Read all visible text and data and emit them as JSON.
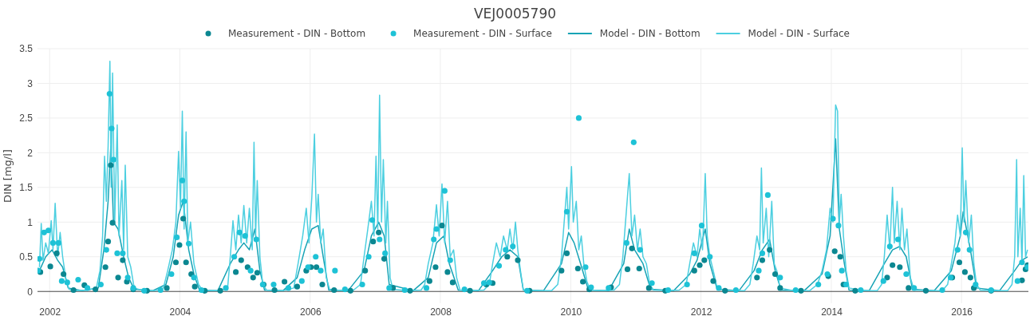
{
  "chart_data": {
    "type": "line",
    "title": "VEJ0005790",
    "ylabel": "DIN [mg/l]",
    "legend": "top",
    "grid": true,
    "xlim": [
      "2001-10-25",
      "2017-01-10"
    ],
    "xticks": [
      "2002",
      "2004",
      "2006",
      "2008",
      "2010",
      "2012",
      "2014",
      "2016"
    ],
    "ylim": [
      -0.17,
      3.5
    ],
    "yticks": [
      0,
      0.5,
      1,
      1.5,
      2,
      2.5,
      3,
      3.5
    ],
    "series": [
      {
        "name": "Measurement - DIN - Bottom",
        "type": "scatter",
        "marker": "circle",
        "color": "#0b8791",
        "x": [
          "2001-11-10",
          "2002-01-05",
          "2002-02-10",
          "2002-03-20",
          "2002-05-15",
          "2002-07-15",
          "2002-09-15",
          "2002-11-10",
          "2002-11-25",
          "2002-12-10",
          "2002-12-20",
          "2003-01-20",
          "2003-02-15",
          "2003-03-10",
          "2003-04-15",
          "2003-07-01",
          "2003-10-20",
          "2003-12-10",
          "2003-12-30",
          "2004-01-20",
          "2004-02-05",
          "2004-03-05",
          "2004-03-25",
          "2004-05-20",
          "2004-08-15",
          "2004-11-10",
          "2004-12-10",
          "2005-01-15",
          "2005-02-15",
          "2005-03-10",
          "2005-04-15",
          "2005-06-15",
          "2005-08-10",
          "2005-10-20",
          "2005-12-10",
          "2006-01-05",
          "2006-02-05",
          "2006-03-10",
          "2006-05-15",
          "2006-08-15",
          "2006-11-05",
          "2006-12-20",
          "2007-01-20",
          "2007-02-20",
          "2007-04-10",
          "2007-07-15",
          "2007-11-01",
          "2007-12-05",
          "2008-01-10",
          "2008-02-10",
          "2008-03-10",
          "2008-06-15",
          "2008-09-15",
          "2008-10-20",
          "2009-01-10",
          "2009-03-10",
          "2009-05-15",
          "2009-11-10",
          "2009-12-10",
          "2010-02-10",
          "2010-03-10",
          "2010-04-15",
          "2010-08-15",
          "2010-11-15",
          "2010-12-10",
          "2011-01-20",
          "2011-03-15",
          "2011-06-15",
          "2011-11-25",
          "2011-12-25",
          "2012-01-20",
          "2012-03-10",
          "2012-05-15",
          "2012-11-10",
          "2012-12-10",
          "2013-01-20",
          "2013-02-20",
          "2013-03-20",
          "2013-07-15",
          "2013-12-15",
          "2014-01-20",
          "2014-02-20",
          "2014-03-10",
          "2014-05-15",
          "2014-11-10",
          "2014-12-10",
          "2015-01-20",
          "2015-03-10",
          "2015-06-15",
          "2015-11-10",
          "2015-12-20",
          "2016-01-20",
          "2016-02-20",
          "2016-03-10",
          "2016-06-15",
          "2016-12-05",
          "2016-12-25",
          "2017-01-05"
        ],
        "values": [
          0.28,
          0.36,
          0.55,
          0.25,
          0.02,
          0.09,
          0.03,
          0.35,
          0.72,
          1.82,
          0.99,
          0.2,
          0.45,
          0.14,
          0.03,
          0.01,
          0.05,
          0.42,
          0.67,
          1.05,
          0.42,
          0.25,
          0.07,
          0.01,
          0.01,
          0.28,
          0.45,
          0.35,
          0.2,
          0.27,
          0.1,
          0.02,
          0.14,
          0.07,
          0.3,
          0.35,
          0.35,
          0.1,
          0.02,
          0.01,
          0.3,
          0.72,
          0.85,
          0.47,
          0.05,
          0.01,
          0.15,
          0.35,
          0.95,
          0.28,
          0.13,
          0.01,
          0.1,
          0.12,
          0.5,
          0.45,
          0.01,
          0.3,
          0.55,
          0.33,
          0.14,
          0.03,
          0.06,
          0.32,
          0.62,
          0.33,
          0.05,
          0.01,
          0.3,
          0.38,
          0.45,
          0.15,
          0.01,
          0.2,
          0.45,
          0.6,
          0.25,
          0.05,
          0.01,
          0.22,
          0.58,
          0.5,
          0.1,
          0.01,
          0.2,
          0.38,
          0.35,
          0.05,
          0.01,
          0.2,
          0.42,
          0.28,
          0.2,
          0.05,
          0.01,
          0.16,
          0.32,
          0.38
        ]
      },
      {
        "name": "Measurement - DIN - Surface",
        "type": "scatter",
        "marker": "circle",
        "color": "#1ec2d6",
        "x": [
          "2001-10-28",
          "2001-11-05",
          "2001-12-01",
          "2001-12-25",
          "2002-01-20",
          "2002-02-20",
          "2002-03-10",
          "2002-04-10",
          "2002-06-10",
          "2002-08-01",
          "2002-10-15",
          "2002-11-15",
          "2002-12-03",
          "2002-12-15",
          "2002-12-25",
          "2003-01-15",
          "2003-02-15",
          "2003-03-15",
          "2003-04-15",
          "2003-06-15",
          "2003-09-15",
          "2003-11-15",
          "2003-12-15",
          "2004-01-15",
          "2004-01-25",
          "2004-02-20",
          "2004-03-20",
          "2004-05-01",
          "2004-09-15",
          "2004-11-01",
          "2004-12-01",
          "2005-01-01",
          "2005-02-01",
          "2005-03-05",
          "2005-04-10",
          "2005-06-10",
          "2005-09-01",
          "2005-11-15",
          "2005-12-20",
          "2006-02-01",
          "2006-03-01",
          "2006-05-20",
          "2006-07-15",
          "2006-10-20",
          "2006-11-25",
          "2006-12-15",
          "2007-01-25",
          "2007-02-25",
          "2007-03-20",
          "2007-06-15",
          "2007-10-15",
          "2007-11-25",
          "2007-12-10",
          "2008-01-25",
          "2008-02-25",
          "2008-05-15",
          "2008-09-01",
          "2008-10-01",
          "2008-11-25",
          "2009-01-01",
          "2009-02-10",
          "2009-05-01",
          "2009-12-10",
          "2010-02-15",
          "2010-03-25",
          "2010-04-25",
          "2010-08-01",
          "2010-11-10",
          "2010-12-20",
          "2011-01-25",
          "2011-04-01",
          "2011-07-01",
          "2011-10-15",
          "2011-11-25",
          "2012-01-05",
          "2012-02-20",
          "2012-04-10",
          "2012-07-15",
          "2012-11-20",
          "2012-12-10",
          "2013-01-10",
          "2013-03-20",
          "2013-06-15",
          "2013-10-20",
          "2013-12-10",
          "2014-01-10",
          "2014-02-10",
          "2014-03-01",
          "2014-03-25",
          "2014-06-15",
          "2014-10-20",
          "2014-11-25",
          "2015-01-10",
          "2015-02-25",
          "2015-04-10",
          "2015-09-15",
          "2015-11-01",
          "2015-12-10",
          "2016-01-25",
          "2016-02-15",
          "2016-03-20",
          "2016-06-15",
          "2016-11-10",
          "2016-12-05",
          "2017-01-05"
        ],
        "values": [
          0.3,
          0.47,
          0.85,
          0.88,
          0.7,
          0.7,
          0.15,
          0.13,
          0.17,
          0.05,
          0.1,
          0.6,
          2.85,
          2.35,
          1.9,
          0.55,
          0.55,
          0.2,
          0.05,
          0.01,
          0.02,
          0.25,
          0.78,
          1.6,
          1.3,
          0.69,
          0.2,
          0.02,
          0.05,
          0.5,
          0.85,
          0.8,
          0.3,
          0.75,
          0.1,
          0.1,
          0.05,
          0.15,
          0.35,
          0.5,
          0.3,
          0.3,
          0.03,
          0.1,
          0.5,
          1.03,
          0.75,
          0.55,
          0.05,
          0.02,
          0.05,
          0.75,
          0.9,
          1.45,
          0.45,
          0.03,
          0.12,
          0.13,
          0.37,
          0.6,
          0.65,
          0.01,
          1.15,
          2.5,
          0.35,
          0.06,
          0.05,
          0.7,
          2.15,
          0.6,
          0.12,
          0.02,
          0.1,
          0.55,
          0.95,
          0.5,
          0.05,
          0.02,
          0.3,
          0.55,
          1.39,
          0.2,
          0.02,
          0.1,
          0.25,
          1.05,
          0.95,
          0.3,
          0.1,
          0.02,
          0.15,
          0.65,
          0.75,
          0.25,
          0.05,
          0.02,
          0.2,
          0.6,
          0.85,
          0.6,
          0.1,
          0.02,
          0.15,
          0.42,
          0.35
        ]
      },
      {
        "name": "Model - DIN - Bottom",
        "color": "#17a3b5",
        "x": [
          "2001-11-05",
          "2001-12-10",
          "2002-01-15",
          "2002-02-15",
          "2002-03-15",
          "2002-04-15",
          "2002-07-01",
          "2002-10-01",
          "2002-11-01",
          "2002-11-25",
          "2002-12-10",
          "2002-12-25",
          "2003-01-20",
          "2003-02-20",
          "2003-03-20",
          "2003-04-20",
          "2003-08-01",
          "2003-10-15",
          "2003-11-25",
          "2003-12-25",
          "2004-01-20",
          "2004-02-20",
          "2004-03-20",
          "2004-04-20",
          "2004-08-01",
          "2004-10-10",
          "2004-11-25",
          "2004-12-25",
          "2005-01-25",
          "2005-02-25",
          "2005-03-25",
          "2005-04-20",
          "2005-08-01",
          "2005-10-20",
          "2005-12-01",
          "2006-01-10",
          "2006-02-15",
          "2006-03-15",
          "2006-04-15",
          "2006-08-01",
          "2006-10-30",
          "2006-12-10",
          "2007-01-20",
          "2007-02-20",
          "2007-03-20",
          "2007-08-01",
          "2007-10-25",
          "2007-12-10",
          "2008-01-20",
          "2008-02-20",
          "2008-04-10",
          "2008-08-01",
          "2008-10-20",
          "2008-12-10",
          "2009-01-25",
          "2009-03-10",
          "2009-04-10",
          "2009-08-01",
          "2009-11-10",
          "2009-12-20",
          "2010-01-20",
          "2010-02-25",
          "2010-04-10",
          "2010-08-01",
          "2010-10-25",
          "2010-11-25",
          "2010-12-25",
          "2011-02-10",
          "2011-03-25",
          "2011-08-01",
          "2011-10-30",
          "2011-12-10",
          "2012-01-25",
          "2012-02-20",
          "2012-04-01",
          "2012-08-01",
          "2012-10-25",
          "2012-12-10",
          "2013-01-20",
          "2013-02-20",
          "2013-03-25",
          "2013-08-01",
          "2013-11-10",
          "2013-12-25",
          "2014-01-25",
          "2014-02-15",
          "2014-03-15",
          "2014-04-10",
          "2014-08-01",
          "2014-10-25",
          "2014-12-10",
          "2015-01-20",
          "2015-02-25",
          "2015-04-01",
          "2015-08-01",
          "2015-11-05",
          "2015-12-25",
          "2016-01-10",
          "2016-02-20",
          "2016-03-25",
          "2016-08-01",
          "2016-10-25",
          "2016-12-05",
          "2017-01-05"
        ],
        "values": [
          0.3,
          0.5,
          0.6,
          0.45,
          0.35,
          0.05,
          0.01,
          0.05,
          0.6,
          1.3,
          2.1,
          1.0,
          0.9,
          0.5,
          0.2,
          0.03,
          0.01,
          0.1,
          0.5,
          1.1,
          1.3,
          0.6,
          0.25,
          0.02,
          0.01,
          0.4,
          0.6,
          0.7,
          0.6,
          0.9,
          0.3,
          0.02,
          0.01,
          0.2,
          0.6,
          0.9,
          0.95,
          0.5,
          0.02,
          0.01,
          0.3,
          0.8,
          1.0,
          0.8,
          0.1,
          0.01,
          0.2,
          0.7,
          0.8,
          0.4,
          0.02,
          0.01,
          0.3,
          0.5,
          0.6,
          0.5,
          0.02,
          0.01,
          0.4,
          0.85,
          0.7,
          0.4,
          0.02,
          0.01,
          0.4,
          0.9,
          0.6,
          0.4,
          0.03,
          0.01,
          0.25,
          0.45,
          0.9,
          0.4,
          0.03,
          0.01,
          0.3,
          0.6,
          0.75,
          0.3,
          0.02,
          0.01,
          0.25,
          0.8,
          2.2,
          0.9,
          0.4,
          0.02,
          0.01,
          0.4,
          0.6,
          0.65,
          0.5,
          0.03,
          0.01,
          0.3,
          0.8,
          1.15,
          0.6,
          0.05,
          0.01,
          0.3,
          0.45,
          0.5
        ]
      },
      {
        "name": "Model - DIN - Surface",
        "color": "#4ccfe0",
        "x": [
          "2001-11-05",
          "2001-11-15",
          "2001-11-25",
          "2001-12-10",
          "2001-12-25",
          "2002-01-10",
          "2002-01-20",
          "2002-02-01",
          "2002-02-15",
          "2002-03-01",
          "2002-03-15",
          "2002-04-01",
          "2002-04-20",
          "2002-06-01",
          "2002-08-01",
          "2002-09-20",
          "2002-10-10",
          "2002-10-25",
          "2002-11-05",
          "2002-11-15",
          "2002-11-25",
          "2002-12-05",
          "2002-12-12",
          "2002-12-20",
          "2003-01-01",
          "2003-01-15",
          "2003-01-25",
          "2003-02-10",
          "2003-02-20",
          "2003-03-01",
          "2003-03-15",
          "2003-04-01",
          "2003-04-20",
          "2003-06-15",
          "2003-08-15",
          "2003-10-01",
          "2003-10-25",
          "2003-11-20",
          "2003-12-10",
          "2003-12-25",
          "2004-01-05",
          "2004-01-15",
          "2004-01-25",
          "2004-02-05",
          "2004-02-15",
          "2004-03-01",
          "2004-03-20",
          "2004-04-15",
          "2004-05-10",
          "2004-08-01",
          "2004-09-25",
          "2004-10-10",
          "2004-10-25",
          "2004-11-10",
          "2004-11-25",
          "2004-12-10",
          "2004-12-25",
          "2005-01-10",
          "2005-01-25",
          "2005-02-10",
          "2005-02-20",
          "2005-03-01",
          "2005-03-10",
          "2005-03-25",
          "2005-04-10",
          "2005-05-01",
          "2005-08-01",
          "2005-10-01",
          "2005-10-25",
          "2005-11-20",
          "2005-12-10",
          "2005-12-25",
          "2006-01-10",
          "2006-01-25",
          "2006-02-05",
          "2006-02-15",
          "2006-03-01",
          "2006-03-15",
          "2006-04-01",
          "2006-04-20",
          "2006-07-01",
          "2006-09-01",
          "2006-10-10",
          "2006-10-30",
          "2006-11-20",
          "2006-12-10",
          "2006-12-25",
          "2007-01-05",
          "2007-01-15",
          "2007-01-25",
          "2007-02-05",
          "2007-02-15",
          "2007-03-01",
          "2007-03-10",
          "2007-03-25",
          "2007-04-10",
          "2007-07-01",
          "2007-09-15",
          "2007-10-05",
          "2007-10-25",
          "2007-11-20",
          "2007-12-10",
          "2007-12-25",
          "2008-01-10",
          "2008-01-25",
          "2008-02-10",
          "2008-02-25",
          "2008-03-15",
          "2008-04-01",
          "2008-04-20",
          "2008-07-01",
          "2008-09-01",
          "2008-10-01",
          "2008-10-20",
          "2008-11-10",
          "2008-12-01",
          "2008-12-20",
          "2009-01-10",
          "2009-01-25",
          "2009-02-10",
          "2009-02-25",
          "2009-03-10",
          "2009-03-25",
          "2009-04-10",
          "2009-07-01",
          "2009-09-15",
          "2009-10-20",
          "2009-11-10",
          "2009-11-25",
          "2009-12-10",
          "2009-12-20",
          "2010-01-05",
          "2010-01-15",
          "2010-02-01",
          "2010-02-15",
          "2010-03-01",
          "2010-03-15",
          "2010-04-01",
          "2010-04-20",
          "2010-07-01",
          "2010-09-01",
          "2010-10-01",
          "2010-10-20",
          "2010-11-10",
          "2010-11-25",
          "2010-12-10",
          "2010-12-25",
          "2011-01-10",
          "2011-01-25",
          "2011-02-10",
          "2011-03-01",
          "2011-03-20",
          "2011-04-10",
          "2011-07-01",
          "2011-09-01",
          "2011-10-10",
          "2011-10-30",
          "2011-11-20",
          "2011-12-10",
          "2011-12-25",
          "2012-01-10",
          "2012-01-25",
          "2012-02-05",
          "2012-02-20",
          "2012-03-10",
          "2012-04-01",
          "2012-06-01",
          "2012-09-01",
          "2012-10-01",
          "2012-10-20",
          "2012-11-10",
          "2012-11-25",
          "2012-12-05",
          "2012-12-15",
          "2013-01-01",
          "2013-01-15",
          "2013-02-01",
          "2013-02-15",
          "2013-03-01",
          "2013-03-20",
          "2013-06-01",
          "2013-09-01",
          "2013-10-15",
          "2013-11-10",
          "2013-12-05",
          "2013-12-25",
          "2014-01-10",
          "2014-01-25",
          "2014-02-05",
          "2014-02-15",
          "2014-02-25",
          "2014-03-10",
          "2014-03-25",
          "2014-04-10",
          "2014-07-01",
          "2014-09-15",
          "2014-10-10",
          "2014-10-25",
          "2014-11-10",
          "2014-11-25",
          "2014-12-10",
          "2014-12-20",
          "2015-01-05",
          "2015-01-20",
          "2015-02-01",
          "2015-02-15",
          "2015-03-01",
          "2015-03-20",
          "2015-04-10",
          "2015-07-01",
          "2015-09-15",
          "2015-10-15",
          "2015-11-05",
          "2015-11-25",
          "2015-12-10",
          "2015-12-25",
          "2016-01-05",
          "2016-01-15",
          "2016-01-25",
          "2016-02-10",
          "2016-02-25",
          "2016-03-10",
          "2016-03-25",
          "2016-04-15",
          "2016-07-01",
          "2016-09-15",
          "2016-10-10",
          "2016-10-25",
          "2016-11-05",
          "2016-11-12",
          "2016-11-25",
          "2016-12-05",
          "2016-12-15",
          "2016-12-25",
          "2017-01-05"
        ],
        "values": [
          0.35,
          0.98,
          0.45,
          0.7,
          0.55,
          1.02,
          0.6,
          1.27,
          0.5,
          0.85,
          0.5,
          0.2,
          0.03,
          0.01,
          0.02,
          0.05,
          0.3,
          0.8,
          1.95,
          1.3,
          2.1,
          3.32,
          1.5,
          3.15,
          1.0,
          2.4,
          0.8,
          1.6,
          0.6,
          1.82,
          0.5,
          0.35,
          0.05,
          0.01,
          0.01,
          0.05,
          0.3,
          0.6,
          1.0,
          2.02,
          1.2,
          2.6,
          0.9,
          2.3,
          0.7,
          1.0,
          0.4,
          0.1,
          0.01,
          0.01,
          0.05,
          0.5,
          1.02,
          0.6,
          1.1,
          0.7,
          1.24,
          0.7,
          1.2,
          0.6,
          2.15,
          0.8,
          1.6,
          0.5,
          0.1,
          0.02,
          0.01,
          0.05,
          0.4,
          0.8,
          1.2,
          0.7,
          1.35,
          2.27,
          1.0,
          1.4,
          0.7,
          0.9,
          0.2,
          0.03,
          0.01,
          0.02,
          0.1,
          0.5,
          0.9,
          1.3,
          0.8,
          1.95,
          0.9,
          2.83,
          1.0,
          1.9,
          0.7,
          1.3,
          0.2,
          0.03,
          0.01,
          0.02,
          0.1,
          0.4,
          0.7,
          1.25,
          0.8,
          1.55,
          0.7,
          1.3,
          0.5,
          0.6,
          0.2,
          0.02,
          0.01,
          0.02,
          0.1,
          0.4,
          0.7,
          0.5,
          0.8,
          0.6,
          0.9,
          0.6,
          1.0,
          0.6,
          0.3,
          0.02,
          0.01,
          0.01,
          0.1,
          0.5,
          1.0,
          1.5,
          0.9,
          1.8,
          1.0,
          1.3,
          0.6,
          0.8,
          0.4,
          0.15,
          0.02,
          0.01,
          0.02,
          0.1,
          0.5,
          1.2,
          1.7,
          0.8,
          1.1,
          0.6,
          0.9,
          0.5,
          0.4,
          0.1,
          0.02,
          0.01,
          0.02,
          0.1,
          0.4,
          0.7,
          0.5,
          0.9,
          0.6,
          1.7,
          0.8,
          0.5,
          0.3,
          0.05,
          0.01,
          0.01,
          0.1,
          0.4,
          0.8,
          0.6,
          1.78,
          0.7,
          1.2,
          0.5,
          1.3,
          0.4,
          0.3,
          0.05,
          0.01,
          0.01,
          0.1,
          0.3,
          0.6,
          1.2,
          1.0,
          2.69,
          2.6,
          1.0,
          1.4,
          0.8,
          0.3,
          0.05,
          0.01,
          0.01,
          0.1,
          0.5,
          1.1,
          0.6,
          1.5,
          0.7,
          1.3,
          0.6,
          1.2,
          0.6,
          0.9,
          0.2,
          0.02,
          0.01,
          0.01,
          0.1,
          0.4,
          0.7,
          1.1,
          0.8,
          2.07,
          1.0,
          1.6,
          0.7,
          1.1,
          0.4,
          0.1,
          0.02,
          0.01,
          0.01,
          0.1,
          0.5,
          1.9,
          0.5,
          1.2,
          0.4,
          1.67,
          0.5,
          0.6
        ]
      }
    ]
  }
}
